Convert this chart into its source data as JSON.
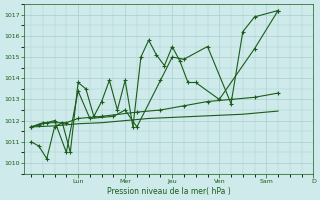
{
  "title": "",
  "xlabel": "Pression niveau de la mer( hPa )",
  "ylabel": "",
  "bg_color": "#ceeaea",
  "grid_color": "#aacece",
  "line_color": "#1a5c1a",
  "ylim": [
    1009.5,
    1017.5
  ],
  "day_labels": [
    "Lun",
    "Mer",
    "Jeu",
    "Ven",
    "Sam",
    "D"
  ],
  "day_positions": [
    2.0,
    4.0,
    6.0,
    8.0,
    10.0,
    12.0
  ],
  "series1_x": [
    0,
    0.33,
    0.67,
    1.0,
    1.33,
    1.67,
    2.0,
    2.33,
    2.67,
    3.0,
    3.33,
    3.67,
    4.0,
    4.33,
    4.67,
    5.0,
    5.33,
    5.67,
    6.0,
    6.33,
    6.67,
    7.0,
    8.0,
    9.5,
    10.5
  ],
  "series1_y": [
    1011.0,
    1010.8,
    1010.2,
    1011.7,
    1011.9,
    1010.5,
    1013.8,
    1013.5,
    1012.2,
    1012.9,
    1013.9,
    1012.5,
    1013.9,
    1011.7,
    1015.0,
    1015.8,
    1015.1,
    1014.6,
    1015.5,
    1014.8,
    1013.8,
    1013.8,
    1013.0,
    1015.4,
    1017.2
  ],
  "series2_x": [
    0,
    0.33,
    0.67,
    1.0,
    1.5,
    2.0,
    2.5,
    3.5,
    4.0,
    4.5,
    5.5,
    6.0,
    6.5,
    7.5,
    8.5,
    9.0,
    9.5,
    10.5
  ],
  "series2_y": [
    1011.7,
    1011.8,
    1011.9,
    1012.0,
    1010.5,
    1013.4,
    1012.1,
    1012.2,
    1012.5,
    1011.7,
    1013.9,
    1015.0,
    1014.9,
    1015.5,
    1012.8,
    1016.2,
    1016.9,
    1017.2
  ],
  "series3_x": [
    0,
    0.5,
    1.5,
    2.0,
    3.0,
    4.5,
    5.5,
    6.5,
    7.5,
    8.5,
    9.5,
    10.5
  ],
  "series3_y": [
    1011.7,
    1011.9,
    1011.9,
    1012.1,
    1012.2,
    1012.4,
    1012.5,
    1012.7,
    1012.9,
    1013.0,
    1013.1,
    1013.3
  ],
  "series4_x": [
    0,
    1.0,
    2.0,
    3.0,
    4.0,
    5.0,
    6.0,
    7.0,
    8.0,
    9.0,
    10.0,
    10.5
  ],
  "series4_y": [
    1011.7,
    1011.75,
    1011.85,
    1011.9,
    1012.0,
    1012.1,
    1012.15,
    1012.2,
    1012.25,
    1012.3,
    1012.4,
    1012.45
  ]
}
